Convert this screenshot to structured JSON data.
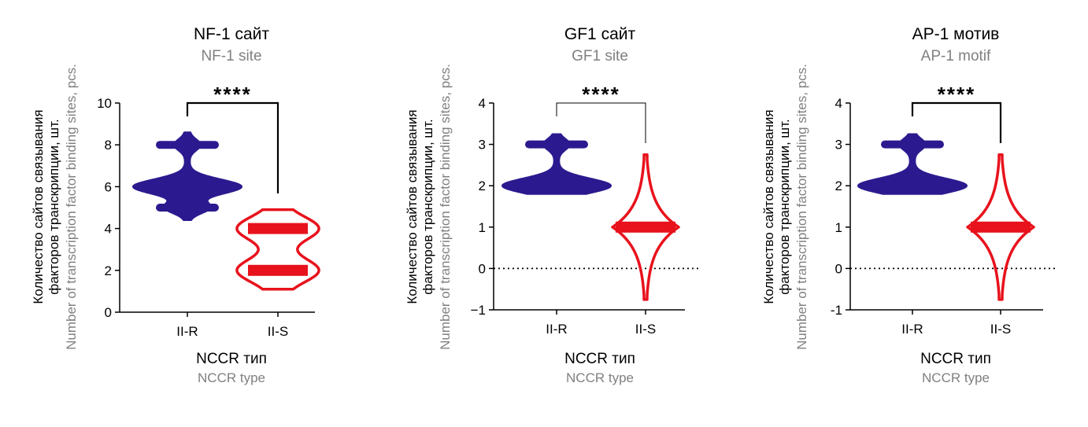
{
  "chart_data": [
    {
      "type": "violin",
      "title": "NF-1 сайт",
      "subtitle": "NF-1 site",
      "xlabel": "NCCR тип",
      "xlabel_en": "NCCR type",
      "ylabel_line1": "Количество сайтов связывания",
      "ylabel_line2": "факторов транскрипции, шт.",
      "ylabel_en": "Number of transcription factor binding sites, pcs.",
      "ylim": [
        0,
        10
      ],
      "yticks": [
        "0",
        "2",
        "4",
        "6",
        "8",
        "10"
      ],
      "categories": [
        "II-R",
        "II-S"
      ],
      "significance": "****",
      "zero_line": false,
      "series": [
        {
          "name": "II-R",
          "color": "#2b1a8f",
          "min": 4.4,
          "max": 8.6,
          "values": [
            5,
            6,
            8
          ]
        },
        {
          "name": "II-S",
          "color": "#e8121c",
          "min": 1.1,
          "max": 4.9,
          "values": [
            2,
            4
          ]
        }
      ]
    },
    {
      "type": "violin",
      "title": "GF1 сайт",
      "subtitle": "GF1 site",
      "xlabel": "NCCR тип",
      "xlabel_en": "NCCR type",
      "ylabel_line1": "Количество сайтов связывания",
      "ylabel_line2": "факторов транскрипции, шт.",
      "ylabel_en": "Number of transcription factor binding sites, pcs.",
      "ylim": [
        -1,
        4
      ],
      "yticks": [
        "−1",
        "0",
        "1",
        "2",
        "3",
        "4"
      ],
      "categories": [
        "II-R",
        "II-S"
      ],
      "significance": "****",
      "zero_line": true,
      "series": [
        {
          "name": "II-R",
          "color": "#2b1a8f",
          "min": 1.8,
          "max": 3.25,
          "values": [
            2,
            3
          ]
        },
        {
          "name": "II-S",
          "color": "#e8121c",
          "min": -0.75,
          "max": 2.75,
          "values": [
            1
          ]
        }
      ]
    },
    {
      "type": "violin",
      "title": "AP-1 мотив",
      "subtitle": "AP-1 motif",
      "xlabel": "NCCR тип",
      "xlabel_en": "NCCR type",
      "ylabel_line1": "Количество сайтов связывания",
      "ylabel_line2": "факторов транскрипции, шт.",
      "ylabel_en": "Number of transcription factor binding sites, pcs.",
      "ylim": [
        -1,
        4
      ],
      "yticks": [
        "-1",
        "0",
        "1",
        "2",
        "3",
        "4"
      ],
      "categories": [
        "II-R",
        "II-S"
      ],
      "significance": "****",
      "zero_line": true,
      "series": [
        {
          "name": "II-R",
          "color": "#2b1a8f",
          "min": 1.8,
          "max": 3.25,
          "values": [
            2,
            3
          ]
        },
        {
          "name": "II-S",
          "color": "#e8121c",
          "min": -0.75,
          "max": 2.75,
          "values": [
            1
          ]
        }
      ]
    }
  ]
}
